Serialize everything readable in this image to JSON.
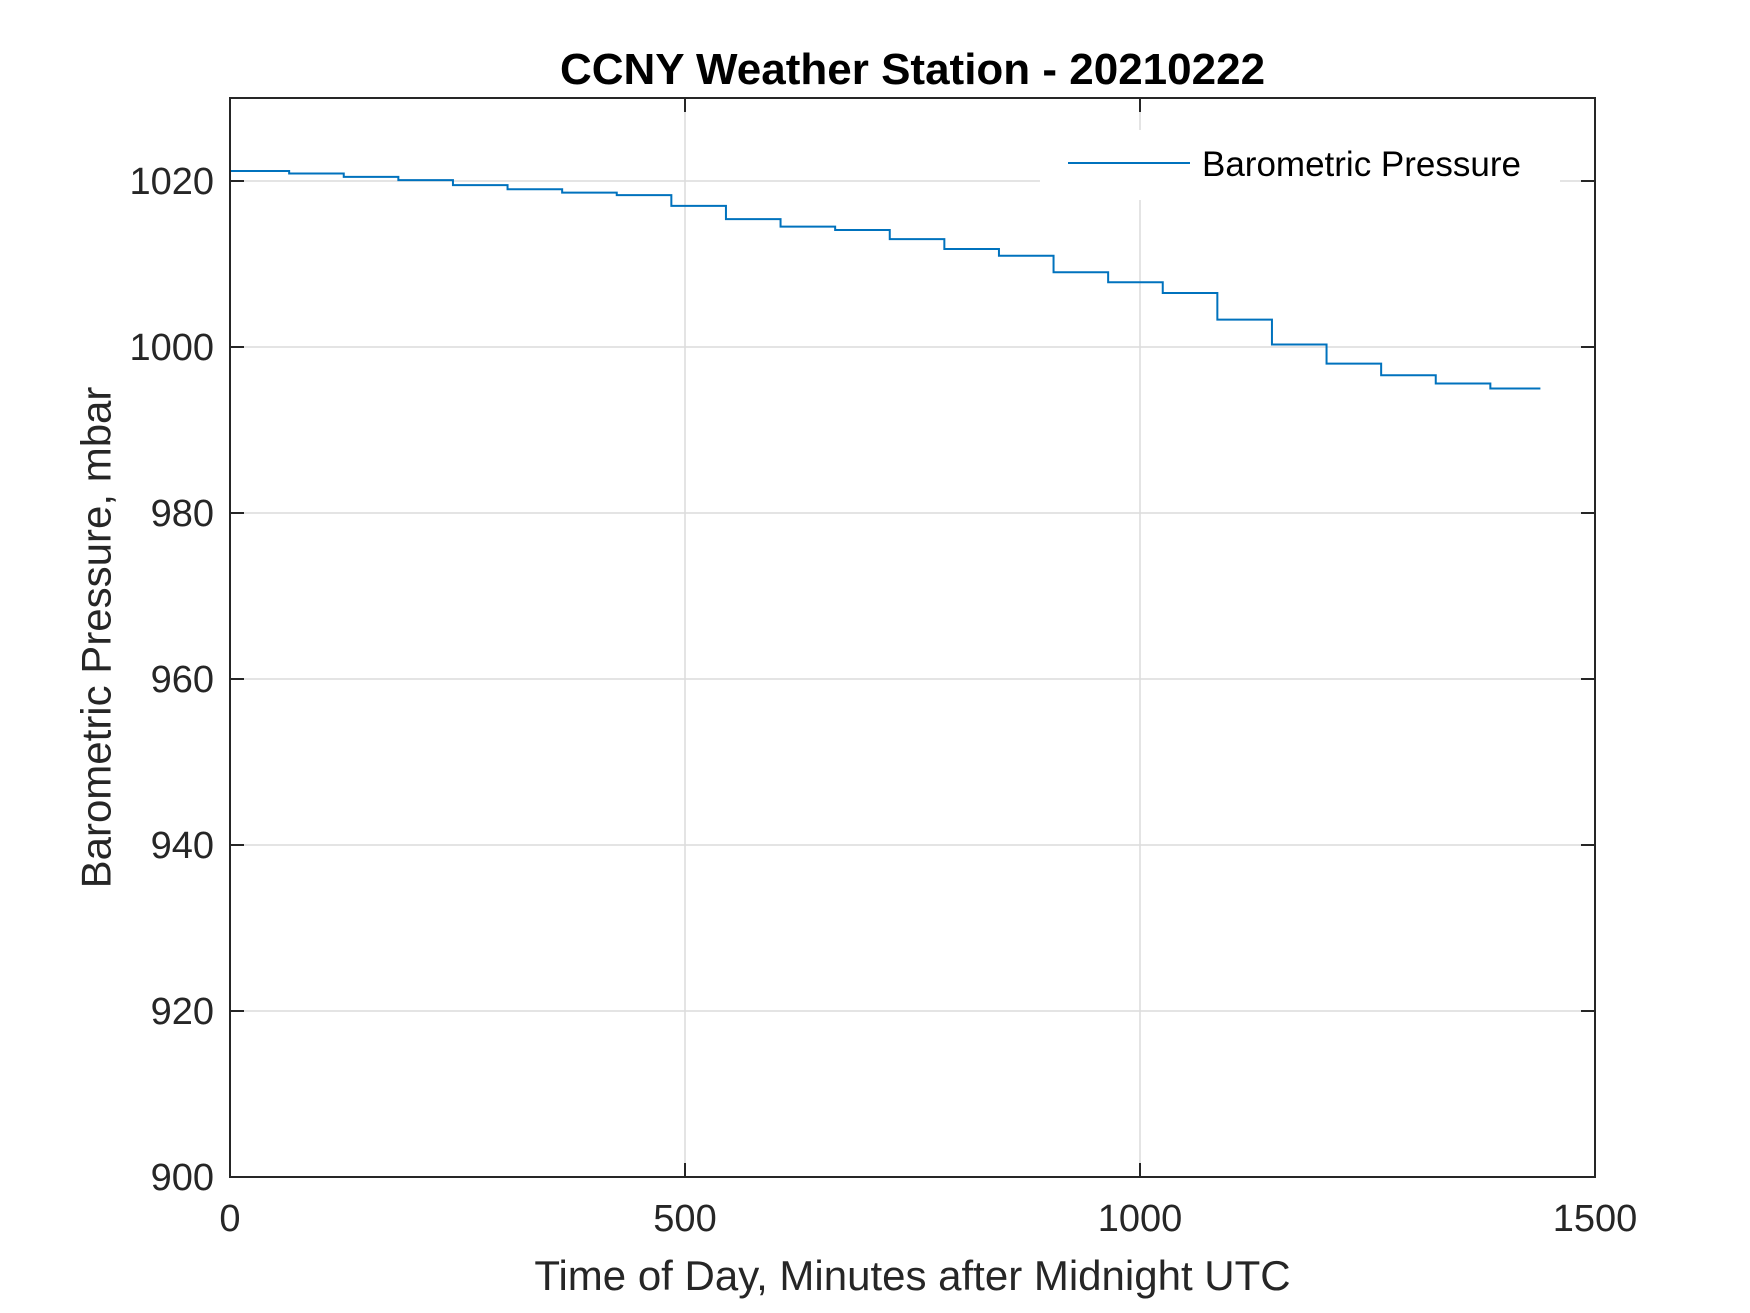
{
  "chart_data": {
    "type": "line",
    "title": "CCNY Weather Station - 20210222",
    "xlabel": "Time of Day, Minutes after Midnight UTC",
    "ylabel": "Barometric Pressure, mbar",
    "xlim": [
      0,
      1500
    ],
    "ylim": [
      900,
      1030
    ],
    "xticks": [
      0,
      500,
      1000,
      1500
    ],
    "xtick_labels": [
      "0",
      "500",
      "1000",
      "1500"
    ],
    "yticks": [
      900,
      920,
      940,
      960,
      980,
      1000,
      1020
    ],
    "ytick_labels": [
      "900",
      "920",
      "940",
      "960",
      "980",
      "1000",
      "1020"
    ],
    "grid": true,
    "legend_position": "top-right",
    "series": [
      {
        "name": "Barometric Pressure",
        "color": "#0072BD",
        "step": true,
        "x": [
          0,
          65,
          125,
          185,
          245,
          305,
          365,
          425,
          485,
          545,
          605,
          665,
          725,
          785,
          845,
          905,
          965,
          1025,
          1085,
          1145,
          1205,
          1265,
          1325,
          1385,
          1440
        ],
        "y": [
          1021.2,
          1020.9,
          1020.5,
          1020.1,
          1019.5,
          1019.0,
          1018.6,
          1018.3,
          1017.0,
          1015.4,
          1014.5,
          1014.1,
          1013.0,
          1011.8,
          1011.0,
          1009.0,
          1007.8,
          1006.5,
          1003.3,
          1000.3,
          998.0,
          996.6,
          995.6,
          995.0,
          995.0
        ]
      }
    ]
  }
}
